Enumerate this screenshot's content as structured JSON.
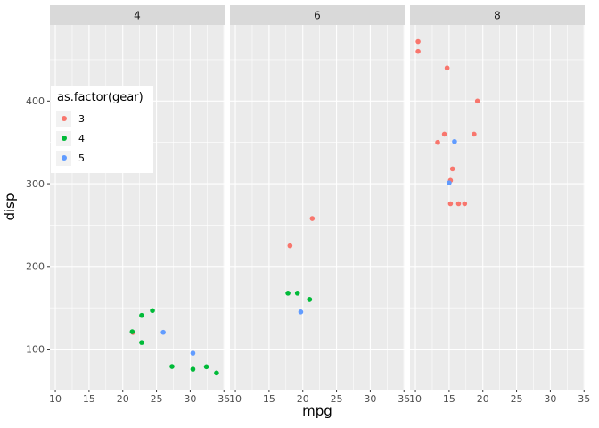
{
  "chart_data": {
    "type": "scatter",
    "title": "",
    "xlabel": "mpg",
    "ylabel": "disp",
    "x_ticks": [
      10,
      15,
      20,
      25,
      30,
      35
    ],
    "y_ticks": [
      100,
      200,
      300,
      400
    ],
    "x_minor": [
      12.5,
      17.5,
      22.5,
      27.5,
      32.5
    ],
    "y_minor": [
      150,
      250,
      350,
      450
    ],
    "xlim": [
      9.2,
      35.1
    ],
    "ylim": [
      51,
      492
    ],
    "grid": true,
    "legend": {
      "title": "as.factor(gear)",
      "position": "inside-top-left-of-first-panel",
      "items": [
        {
          "label": "3",
          "color": "#F8766D"
        },
        {
          "label": "4",
          "color": "#00BA38"
        },
        {
          "label": "5",
          "color": "#619CFF"
        }
      ]
    },
    "colors": {
      "panel_bg": "#EBEBEB",
      "strip_bg": "#D9D9D9",
      "grid": "#FFFFFF",
      "axis_text": "#4D4D4D",
      "tick_mark": "#333333",
      "legend_key_bg": "#F2F2F2",
      "gear": {
        "3": "#F8766D",
        "4": "#00BA38",
        "5": "#619CFF"
      }
    },
    "facets": [
      {
        "label": "4",
        "points": [
          {
            "mpg": 22.8,
            "disp": 108,
            "gear": "4"
          },
          {
            "mpg": 24.4,
            "disp": 146.7,
            "gear": "4"
          },
          {
            "mpg": 22.8,
            "disp": 140.8,
            "gear": "4"
          },
          {
            "mpg": 32.4,
            "disp": 78.7,
            "gear": "4"
          },
          {
            "mpg": 30.4,
            "disp": 75.7,
            "gear": "4"
          },
          {
            "mpg": 33.9,
            "disp": 71.1,
            "gear": "4"
          },
          {
            "mpg": 21.5,
            "disp": 120.1,
            "gear": "3"
          },
          {
            "mpg": 27.3,
            "disp": 79,
            "gear": "4"
          },
          {
            "mpg": 26,
            "disp": 120.3,
            "gear": "5"
          },
          {
            "mpg": 30.4,
            "disp": 95.1,
            "gear": "5"
          },
          {
            "mpg": 21.4,
            "disp": 121,
            "gear": "4"
          }
        ]
      },
      {
        "label": "6",
        "points": [
          {
            "mpg": 21,
            "disp": 160,
            "gear": "4"
          },
          {
            "mpg": 21,
            "disp": 160,
            "gear": "4"
          },
          {
            "mpg": 21.4,
            "disp": 258,
            "gear": "3"
          },
          {
            "mpg": 18.1,
            "disp": 225,
            "gear": "3"
          },
          {
            "mpg": 19.2,
            "disp": 167.6,
            "gear": "4"
          },
          {
            "mpg": 17.8,
            "disp": 167.6,
            "gear": "4"
          },
          {
            "mpg": 19.7,
            "disp": 145,
            "gear": "5"
          }
        ]
      },
      {
        "label": "8",
        "points": [
          {
            "mpg": 18.7,
            "disp": 360,
            "gear": "3"
          },
          {
            "mpg": 14.3,
            "disp": 360,
            "gear": "3"
          },
          {
            "mpg": 16.4,
            "disp": 275.8,
            "gear": "3"
          },
          {
            "mpg": 17.3,
            "disp": 275.8,
            "gear": "3"
          },
          {
            "mpg": 15.2,
            "disp": 275.8,
            "gear": "3"
          },
          {
            "mpg": 10.4,
            "disp": 472,
            "gear": "3"
          },
          {
            "mpg": 10.4,
            "disp": 460,
            "gear": "3"
          },
          {
            "mpg": 14.7,
            "disp": 440,
            "gear": "3"
          },
          {
            "mpg": 15.5,
            "disp": 318,
            "gear": "3"
          },
          {
            "mpg": 15.2,
            "disp": 304,
            "gear": "3"
          },
          {
            "mpg": 13.3,
            "disp": 350,
            "gear": "3"
          },
          {
            "mpg": 19.2,
            "disp": 400,
            "gear": "3"
          },
          {
            "mpg": 15.8,
            "disp": 351,
            "gear": "5"
          },
          {
            "mpg": 15,
            "disp": 301,
            "gear": "5"
          }
        ]
      }
    ]
  }
}
